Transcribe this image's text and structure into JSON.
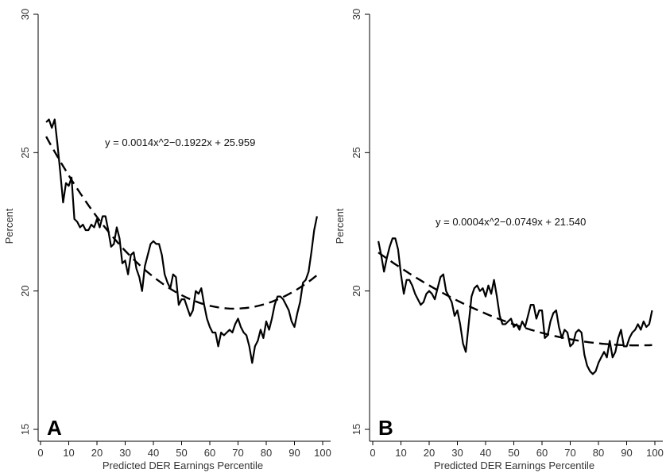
{
  "chart_data": [
    {
      "type": "line",
      "panel_label": "A",
      "xlabel": "Predicted DER Earnings Percentile",
      "ylabel": "Percent",
      "xlim": [
        0,
        100
      ],
      "ylim": [
        15,
        30
      ],
      "xticks": [
        0,
        10,
        20,
        30,
        40,
        50,
        60,
        70,
        80,
        90,
        100
      ],
      "yticks": [
        15,
        20,
        25,
        30
      ],
      "equation": "y = 0.0014x^2−0.1922x + 25.959",
      "fit": {
        "a": 0.0014,
        "b": -0.1922,
        "c": 25.959,
        "style": "dashed"
      },
      "grid": false,
      "series": [
        {
          "x": [
            2,
            3,
            4,
            5,
            6,
            7,
            8,
            9,
            10,
            11,
            12,
            13,
            14,
            15,
            16,
            17,
            18,
            19,
            20,
            21,
            22,
            23,
            24,
            25,
            26,
            27,
            28,
            29,
            30,
            31,
            32,
            33,
            34,
            35,
            36,
            37,
            38,
            39,
            40,
            41,
            42,
            43,
            44,
            45,
            46,
            47,
            48,
            49,
            50,
            51,
            52,
            53,
            54,
            55,
            56,
            57,
            58,
            59,
            60,
            61,
            62,
            63,
            64,
            65,
            66,
            67,
            68,
            69,
            70,
            71,
            72,
            73,
            74,
            75,
            76,
            77,
            78,
            79,
            80,
            81,
            82,
            83,
            84,
            85,
            86,
            87,
            88,
            89,
            90,
            91,
            92,
            93,
            94,
            95,
            96,
            97,
            98,
            99
          ],
          "y": [
            26.1,
            26.2,
            25.9,
            26.2,
            25.3,
            24.3,
            23.2,
            23.9,
            23.8,
            24.1,
            22.6,
            22.5,
            22.3,
            22.4,
            22.2,
            22.2,
            22.4,
            22.3,
            22.6,
            22.3,
            22.7,
            22.7,
            22.2,
            21.6,
            21.7,
            22.3,
            21.9,
            21.0,
            21.1,
            20.6,
            21.3,
            21.4,
            20.8,
            20.5,
            20.0,
            20.9,
            21.3,
            21.7,
            21.8,
            21.7,
            21.7,
            21.3,
            20.6,
            20.3,
            20.1,
            20.6,
            20.5,
            19.5,
            19.7,
            19.7,
            19.4,
            19.1,
            19.3,
            20.0,
            19.9,
            20.1,
            19.5,
            19.0,
            18.7,
            18.5,
            18.5,
            18.0,
            18.5,
            18.4,
            18.5,
            18.6,
            18.5,
            18.8,
            19.0,
            18.7,
            18.5,
            18.4,
            18.0,
            17.4,
            18.0,
            18.2,
            18.6,
            18.3,
            18.9,
            18.6,
            19.0,
            19.5,
            19.8,
            19.8,
            19.7,
            19.5,
            19.3,
            18.9,
            18.7,
            19.2,
            19.6,
            20.3,
            20.4,
            20.7,
            21.4,
            22.2,
            22.7,
            null
          ]
        }
      ]
    },
    {
      "type": "line",
      "panel_label": "B",
      "xlabel": "Predicted DER Earnings Percentile",
      "ylabel": "Percent",
      "xlim": [
        0,
        100
      ],
      "ylim": [
        15,
        30
      ],
      "xticks": [
        0,
        10,
        20,
        30,
        40,
        50,
        60,
        70,
        80,
        90,
        100
      ],
      "yticks": [
        15,
        20,
        25,
        30
      ],
      "equation": "y = 0.0004x^2−0.0749x + 21.540",
      "fit": {
        "a": 0.0004,
        "b": -0.0749,
        "c": 21.54,
        "style": "dashed"
      },
      "grid": false,
      "series": [
        {
          "x": [
            2,
            3,
            4,
            5,
            6,
            7,
            8,
            9,
            10,
            11,
            12,
            13,
            14,
            15,
            16,
            17,
            18,
            19,
            20,
            21,
            22,
            23,
            24,
            25,
            26,
            27,
            28,
            29,
            30,
            31,
            32,
            33,
            34,
            35,
            36,
            37,
            38,
            39,
            40,
            41,
            42,
            43,
            44,
            45,
            46,
            47,
            48,
            49,
            50,
            51,
            52,
            53,
            54,
            55,
            56,
            57,
            58,
            59,
            60,
            61,
            62,
            63,
            64,
            65,
            66,
            67,
            68,
            69,
            70,
            71,
            72,
            73,
            74,
            75,
            76,
            77,
            78,
            79,
            80,
            81,
            82,
            83,
            84,
            85,
            86,
            87,
            88,
            89,
            90,
            91,
            92,
            93,
            94,
            95,
            96,
            97,
            98,
            99
          ],
          "y": [
            21.8,
            21.3,
            20.7,
            21.2,
            21.6,
            21.9,
            21.9,
            21.5,
            20.6,
            19.9,
            20.4,
            20.4,
            20.2,
            19.9,
            19.7,
            19.5,
            19.6,
            19.9,
            20.0,
            19.9,
            19.7,
            20.1,
            20.5,
            20.6,
            20.0,
            19.8,
            19.6,
            19.1,
            19.3,
            18.8,
            18.1,
            17.8,
            18.8,
            19.8,
            20.1,
            20.2,
            20.0,
            20.1,
            19.8,
            20.2,
            19.9,
            20.4,
            19.8,
            19.1,
            18.8,
            18.8,
            18.9,
            19.0,
            18.7,
            18.8,
            18.6,
            18.9,
            18.7,
            19.1,
            19.5,
            19.5,
            19.0,
            19.3,
            19.3,
            18.3,
            18.4,
            18.9,
            19.2,
            19.3,
            18.7,
            18.3,
            18.6,
            18.5,
            18.0,
            18.1,
            18.5,
            18.6,
            18.5,
            17.7,
            17.3,
            17.1,
            17.0,
            17.1,
            17.4,
            17.6,
            17.8,
            17.6,
            18.2,
            17.6,
            17.8,
            18.3,
            18.6,
            18.0,
            18.0,
            18.3,
            18.5,
            18.6,
            18.8,
            18.6,
            18.9,
            18.7,
            18.8,
            19.3
          ]
        }
      ]
    }
  ]
}
